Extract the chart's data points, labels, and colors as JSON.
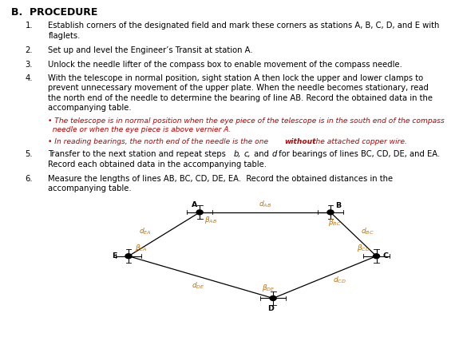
{
  "title": "B.  PROCEDURE",
  "background_color": "#ffffff",
  "text_color": "#000000",
  "red_color": "#c00000",
  "label_color": "#c07000",
  "items": [
    "Establish corners of the designated field and mark these corners as stations A, B, C, D, and E with flaglets.",
    "Set up and level the Engineer’s Transit at station A.",
    "Unlock the needle lifter of the compass box to enable movement of the compass needle.",
    "With the telescope in normal position, sight station A then lock the upper and lower clamps to prevent unnecessary movement of the upper plate. When the needle becomes stationary, read the north end of the needle to determine the bearing of line AB. Record the obtained data in the accompanying table.",
    "Transfer to the next station and repeat steps b, c, and d for bearings of lines BC, CD, DE, and EA. Record each obtained data in the accompanying table.",
    "Measure the lengths of lines AB, BC, CD, DE, EA.  Record the obtained distances in the accompanying table."
  ],
  "note1": "The telescope is in normal position when the eye piece of the telescope is in the south end of the compass needle or when the eye piece is above vernier A.",
  "note2_pre": "In reading bearings, the north end of the needle is the one ",
  "note2_bold": "without",
  "note2_post": " the attached copper wire.",
  "stations_x": {
    "A": 0.435,
    "B": 0.72,
    "C": 0.82,
    "D": 0.595,
    "E": 0.28
  },
  "stations_y": {
    "A": 0.37,
    "B": 0.37,
    "C": 0.24,
    "D": 0.115,
    "E": 0.24
  },
  "edges": [
    [
      "A",
      "B"
    ],
    [
      "B",
      "C"
    ],
    [
      "C",
      "D"
    ],
    [
      "D",
      "E"
    ],
    [
      "E",
      "A"
    ]
  ]
}
